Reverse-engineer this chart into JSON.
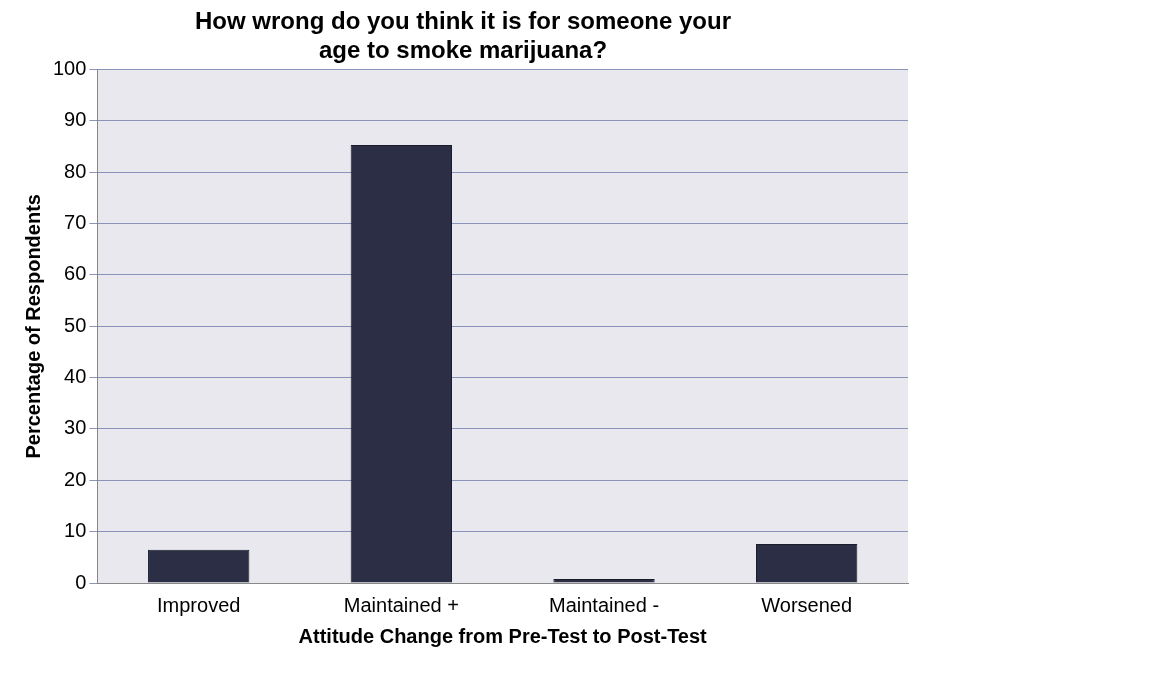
{
  "chart_data": {
    "type": "bar",
    "title": "How wrong do you think it is for someone your age to smoke marijuana?",
    "xlabel": "Attitude Change from Pre-Test to Post-Test",
    "ylabel": "Percentage of Respondents",
    "categories": [
      "Improved",
      "Maintained +",
      "Maintained -",
      "Worsened"
    ],
    "series": [
      {
        "color": "#2b2e45",
        "values": [
          6.5,
          85.3,
          0.8,
          7.6
        ]
      }
    ],
    "ylim": [
      0,
      100
    ],
    "yticks": [
      0,
      10,
      20,
      30,
      40,
      50,
      60,
      70,
      80,
      90,
      100
    ],
    "grid": "y",
    "legend": false
  }
}
